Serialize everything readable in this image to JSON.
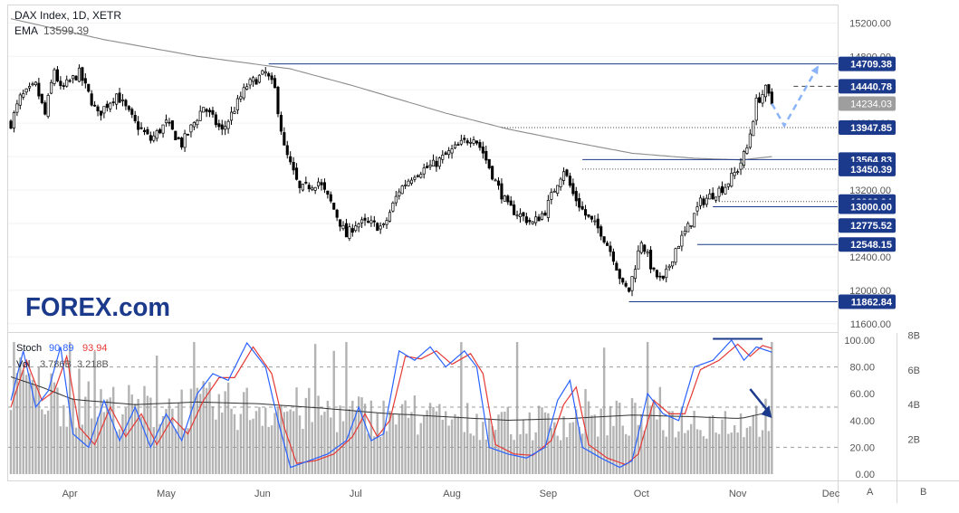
{
  "header": {
    "symbol_line": "DAX Index, 1D, XETR",
    "ema_label": "EMA",
    "ema_value": "13599.39"
  },
  "logo": {
    "text": "FOREX.com"
  },
  "price_axis": {
    "ticks": [
      15200,
      14800,
      14400,
      14000,
      13600,
      13200,
      12800,
      12400,
      12000,
      11600
    ],
    "tick_labels": [
      "15200.00",
      "14800.00",
      "14400.00",
      "14000.00",
      "13600.00",
      "13200.00",
      "12800.00",
      "12400.00",
      "12000.00",
      "11600.00"
    ],
    "range": [
      11500,
      15420
    ]
  },
  "levels": [
    {
      "label": "14709.38",
      "value": 14709.38,
      "style": "solid",
      "start_day": 83
    },
    {
      "label": "14440.78",
      "value": 14440.78,
      "style": "dashed",
      "start_day": 252
    },
    {
      "label": "13947.85",
      "value": 13947.85,
      "style": "dotted",
      "start_day": 158
    },
    {
      "label": "13564.83",
      "value": 13564.83,
      "style": "solid",
      "start_day": 184
    },
    {
      "label": "13450.39",
      "value": 13450.39,
      "style": "dotted",
      "start_day": 184
    },
    {
      "label": "13062.04",
      "value": 13062.04,
      "style": "dotted",
      "start_day": 228
    },
    {
      "label": "13000.00",
      "value": 13000.0,
      "style": "solid",
      "start_day": 226
    },
    {
      "label": "12775.52",
      "value": 12775.52,
      "style": "none",
      "start_day": 0
    },
    {
      "label": "12548.15",
      "value": 12548.15,
      "style": "solid",
      "start_day": 221
    },
    {
      "label": "11862.84",
      "value": 11862.84,
      "style": "solid",
      "start_day": 199
    }
  ],
  "current_price": {
    "label": "14234.03",
    "value": 14234.03
  },
  "oscillator": {
    "stoch_label": "Stoch",
    "stoch_k": "90.89",
    "stoch_d": "93.94",
    "vol_label": "Vol",
    "vol_a": "3.786B",
    "vol_b": "3.218B",
    "ticks": [
      "100.00",
      "80.00",
      "60.00",
      "40.00",
      "20.00",
      "0.00"
    ],
    "vol_ticks": [
      "8B",
      "6B",
      "4B",
      "2B"
    ]
  },
  "time_axis": {
    "labels": [
      "Apr",
      "May",
      "Jun",
      "Jul",
      "Aug",
      "Sep",
      "Oct",
      "Nov",
      "Dec"
    ],
    "label_days": [
      19,
      50,
      81,
      111,
      142,
      173,
      203,
      234,
      264
    ]
  },
  "footer": {
    "btn_a": "A",
    "btn_b": "B"
  },
  "colors": {
    "up": "#ffffff",
    "down": "#000000",
    "candle_outline": "#000000",
    "ema": "#8c8c8c",
    "level": "#1c3a8c",
    "label_bg": "#1c3a8c",
    "current_bg": "#9e9e9e",
    "stoch_k": "#2962ff",
    "stoch_d": "#e53935",
    "volume": "#999999",
    "arrow": "#8ab4f8"
  },
  "chart_data": {
    "type": "candlestick",
    "title": "DAX Index, 1D, XETR",
    "x_unit": "trading day index (approx. 2022-03-14 to 2022-11-18)",
    "control_points": [
      {
        "x": 0,
        "y": 14000
      },
      {
        "x": 3,
        "y": 14300
      },
      {
        "x": 8,
        "y": 14450
      },
      {
        "x": 11,
        "y": 14100
      },
      {
        "x": 14,
        "y": 14650
      },
      {
        "x": 16,
        "y": 14400
      },
      {
        "x": 22,
        "y": 14600
      },
      {
        "x": 28,
        "y": 14100
      },
      {
        "x": 34,
        "y": 14350
      },
      {
        "x": 40,
        "y": 14000
      },
      {
        "x": 45,
        "y": 13800
      },
      {
        "x": 50,
        "y": 14000
      },
      {
        "x": 55,
        "y": 13750
      },
      {
        "x": 62,
        "y": 14200
      },
      {
        "x": 68,
        "y": 13900
      },
      {
        "x": 76,
        "y": 14450
      },
      {
        "x": 82,
        "y": 14600
      },
      {
        "x": 85,
        "y": 14400
      },
      {
        "x": 88,
        "y": 13700
      },
      {
        "x": 91,
        "y": 13400
      },
      {
        "x": 93,
        "y": 13200
      },
      {
        "x": 99,
        "y": 13300
      },
      {
        "x": 103,
        "y": 13050
      },
      {
        "x": 108,
        "y": 12650
      },
      {
        "x": 111,
        "y": 12800
      },
      {
        "x": 115,
        "y": 12800
      },
      {
        "x": 120,
        "y": 12750
      },
      {
        "x": 125,
        "y": 13200
      },
      {
        "x": 130,
        "y": 13400
      },
      {
        "x": 136,
        "y": 13500
      },
      {
        "x": 143,
        "y": 13700
      },
      {
        "x": 149,
        "y": 13850
      },
      {
        "x": 152,
        "y": 13650
      },
      {
        "x": 156,
        "y": 13300
      },
      {
        "x": 160,
        "y": 13000
      },
      {
        "x": 164,
        "y": 12900
      },
      {
        "x": 168,
        "y": 12800
      },
      {
        "x": 172,
        "y": 12950
      },
      {
        "x": 176,
        "y": 13300
      },
      {
        "x": 178,
        "y": 13450
      },
      {
        "x": 181,
        "y": 13150
      },
      {
        "x": 185,
        "y": 12900
      },
      {
        "x": 190,
        "y": 12700
      },
      {
        "x": 194,
        "y": 12400
      },
      {
        "x": 197,
        "y": 12050
      },
      {
        "x": 199,
        "y": 12000
      },
      {
        "x": 203,
        "y": 12600
      },
      {
        "x": 207,
        "y": 12200
      },
      {
        "x": 210,
        "y": 12100
      },
      {
        "x": 214,
        "y": 12500
      },
      {
        "x": 218,
        "y": 12750
      },
      {
        "x": 222,
        "y": 13050
      },
      {
        "x": 226,
        "y": 13150
      },
      {
        "x": 230,
        "y": 13250
      },
      {
        "x": 234,
        "y": 13450
      },
      {
        "x": 237,
        "y": 13700
      },
      {
        "x": 240,
        "y": 14250
      },
      {
        "x": 243,
        "y": 14400
      },
      {
        "x": 245,
        "y": 14234
      }
    ],
    "ema_points": [
      {
        "x": 0,
        "y": 15250
      },
      {
        "x": 30,
        "y": 15000
      },
      {
        "x": 60,
        "y": 14800
      },
      {
        "x": 90,
        "y": 14650
      },
      {
        "x": 110,
        "y": 14450
      },
      {
        "x": 140,
        "y": 14120
      },
      {
        "x": 160,
        "y": 13930
      },
      {
        "x": 180,
        "y": 13780
      },
      {
        "x": 200,
        "y": 13640
      },
      {
        "x": 220,
        "y": 13580
      },
      {
        "x": 235,
        "y": 13560
      },
      {
        "x": 245,
        "y": 13600
      }
    ],
    "projection": [
      {
        "x": 245,
        "y": 14234
      },
      {
        "x": 249,
        "y": 13970
      },
      {
        "x": 260,
        "y": 14690
      }
    ],
    "stoch_k_points": [
      {
        "x": 0,
        "y": 55
      },
      {
        "x": 4,
        "y": 92
      },
      {
        "x": 8,
        "y": 50
      },
      {
        "x": 12,
        "y": 62
      },
      {
        "x": 16,
        "y": 95
      },
      {
        "x": 20,
        "y": 30
      },
      {
        "x": 25,
        "y": 20
      },
      {
        "x": 30,
        "y": 55
      },
      {
        "x": 35,
        "y": 25
      },
      {
        "x": 40,
        "y": 50
      },
      {
        "x": 45,
        "y": 20
      },
      {
        "x": 50,
        "y": 45
      },
      {
        "x": 55,
        "y": 25
      },
      {
        "x": 60,
        "y": 60
      },
      {
        "x": 65,
        "y": 75
      },
      {
        "x": 70,
        "y": 70
      },
      {
        "x": 76,
        "y": 98
      },
      {
        "x": 82,
        "y": 80
      },
      {
        "x": 86,
        "y": 40
      },
      {
        "x": 90,
        "y": 5
      },
      {
        "x": 96,
        "y": 10
      },
      {
        "x": 102,
        "y": 15
      },
      {
        "x": 108,
        "y": 25
      },
      {
        "x": 112,
        "y": 50
      },
      {
        "x": 116,
        "y": 25
      },
      {
        "x": 120,
        "y": 30
      },
      {
        "x": 125,
        "y": 92
      },
      {
        "x": 130,
        "y": 85
      },
      {
        "x": 135,
        "y": 95
      },
      {
        "x": 140,
        "y": 80
      },
      {
        "x": 146,
        "y": 92
      },
      {
        "x": 150,
        "y": 80
      },
      {
        "x": 154,
        "y": 20
      },
      {
        "x": 160,
        "y": 15
      },
      {
        "x": 166,
        "y": 12
      },
      {
        "x": 172,
        "y": 20
      },
      {
        "x": 176,
        "y": 55
      },
      {
        "x": 180,
        "y": 70
      },
      {
        "x": 184,
        "y": 20
      },
      {
        "x": 190,
        "y": 12
      },
      {
        "x": 196,
        "y": 5
      },
      {
        "x": 200,
        "y": 10
      },
      {
        "x": 205,
        "y": 60
      },
      {
        "x": 210,
        "y": 45
      },
      {
        "x": 215,
        "y": 40
      },
      {
        "x": 220,
        "y": 80
      },
      {
        "x": 226,
        "y": 85
      },
      {
        "x": 232,
        "y": 100
      },
      {
        "x": 236,
        "y": 85
      },
      {
        "x": 240,
        "y": 95
      },
      {
        "x": 245,
        "y": 91
      }
    ],
    "stoch_d_points": [
      {
        "x": 0,
        "y": 50
      },
      {
        "x": 5,
        "y": 85
      },
      {
        "x": 10,
        "y": 55
      },
      {
        "x": 14,
        "y": 62
      },
      {
        "x": 18,
        "y": 88
      },
      {
        "x": 22,
        "y": 35
      },
      {
        "x": 27,
        "y": 22
      },
      {
        "x": 32,
        "y": 50
      },
      {
        "x": 37,
        "y": 28
      },
      {
        "x": 42,
        "y": 45
      },
      {
        "x": 47,
        "y": 22
      },
      {
        "x": 52,
        "y": 42
      },
      {
        "x": 57,
        "y": 30
      },
      {
        "x": 62,
        "y": 55
      },
      {
        "x": 67,
        "y": 72
      },
      {
        "x": 72,
        "y": 72
      },
      {
        "x": 78,
        "y": 95
      },
      {
        "x": 84,
        "y": 75
      },
      {
        "x": 88,
        "y": 35
      },
      {
        "x": 92,
        "y": 8
      },
      {
        "x": 98,
        "y": 10
      },
      {
        "x": 104,
        "y": 15
      },
      {
        "x": 110,
        "y": 28
      },
      {
        "x": 114,
        "y": 45
      },
      {
        "x": 118,
        "y": 28
      },
      {
        "x": 122,
        "y": 40
      },
      {
        "x": 127,
        "y": 88
      },
      {
        "x": 132,
        "y": 86
      },
      {
        "x": 137,
        "y": 92
      },
      {
        "x": 142,
        "y": 82
      },
      {
        "x": 148,
        "y": 90
      },
      {
        "x": 152,
        "y": 75
      },
      {
        "x": 156,
        "y": 22
      },
      {
        "x": 162,
        "y": 15
      },
      {
        "x": 168,
        "y": 14
      },
      {
        "x": 174,
        "y": 25
      },
      {
        "x": 178,
        "y": 52
      },
      {
        "x": 182,
        "y": 65
      },
      {
        "x": 186,
        "y": 22
      },
      {
        "x": 192,
        "y": 12
      },
      {
        "x": 198,
        "y": 7
      },
      {
        "x": 202,
        "y": 15
      },
      {
        "x": 207,
        "y": 55
      },
      {
        "x": 212,
        "y": 45
      },
      {
        "x": 217,
        "y": 45
      },
      {
        "x": 222,
        "y": 78
      },
      {
        "x": 228,
        "y": 85
      },
      {
        "x": 234,
        "y": 97
      },
      {
        "x": 238,
        "y": 88
      },
      {
        "x": 242,
        "y": 96
      },
      {
        "x": 245,
        "y": 94
      }
    ],
    "volume_ma_points": [
      {
        "x": 0,
        "y": 5.6
      },
      {
        "x": 10,
        "y": 5.0
      },
      {
        "x": 20,
        "y": 4.3
      },
      {
        "x": 40,
        "y": 4.0
      },
      {
        "x": 60,
        "y": 4.15
      },
      {
        "x": 80,
        "y": 4.05
      },
      {
        "x": 100,
        "y": 3.8
      },
      {
        "x": 120,
        "y": 3.5
      },
      {
        "x": 140,
        "y": 3.3
      },
      {
        "x": 160,
        "y": 3.1
      },
      {
        "x": 180,
        "y": 3.2
      },
      {
        "x": 200,
        "y": 3.4
      },
      {
        "x": 220,
        "y": 3.3
      },
      {
        "x": 235,
        "y": 3.2
      },
      {
        "x": 245,
        "y": 3.6
      }
    ],
    "stoch_range": [
      0,
      100
    ],
    "volume_range_billions": [
      0,
      10
    ],
    "annotations": [
      "horizontal line at stochastic highs near 100 (Nov)",
      "downward arrow over stochastic/volume panel (Nov)",
      "dashed projected path from 14234 down to ~13970 then up to ~14700"
    ]
  }
}
